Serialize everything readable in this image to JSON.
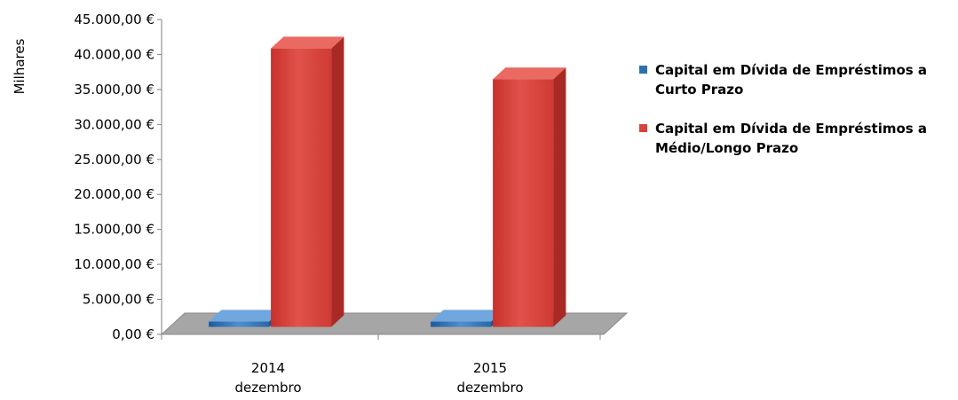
{
  "chart_data": {
    "type": "bar",
    "categories": [
      [
        "2014",
        "dezembro"
      ],
      [
        "2015",
        "dezembro"
      ]
    ],
    "series": [
      {
        "name": "Capital em Dívida de Empréstimos a Curto Prazo",
        "values": [
          0,
          0
        ],
        "color": "#2e6fb0"
      },
      {
        "name": "Capital em Dívida de Empréstimos a Médio/Longo Prazo",
        "values": [
          39800,
          35400
        ],
        "color": "#d9423c"
      }
    ],
    "ylabel": "Milhares",
    "ylim": [
      0,
      45000
    ],
    "yticks": [
      0,
      5000,
      10000,
      15000,
      20000,
      25000,
      30000,
      35000,
      40000,
      45000
    ],
    "ytick_labels": [
      "0,00 €",
      "5.000,00 €",
      "10.000,00 €",
      "15.000,00 €",
      "20.000,00 €",
      "25.000,00 €",
      "30.000,00 €",
      "35.000,00 €",
      "40.000,00 €",
      "45.000,00 €"
    ],
    "legend_position": "right",
    "grid": false,
    "style": "3d-column"
  }
}
